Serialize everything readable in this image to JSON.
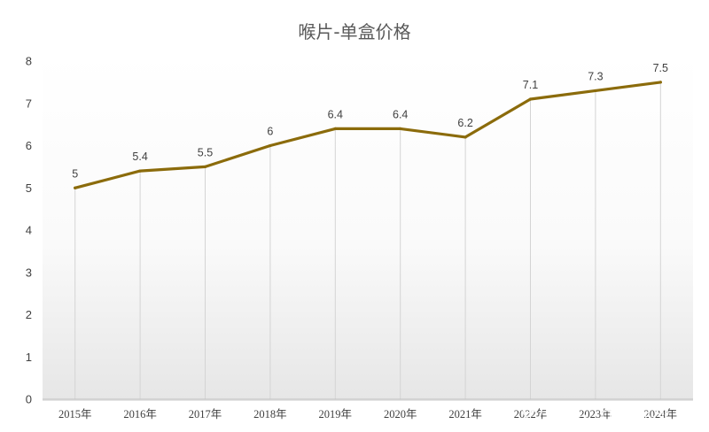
{
  "chart_data": {
    "type": "line",
    "title": "喉片-单盒价格",
    "categories": [
      "2015年",
      "2016年",
      "2017年",
      "2018年",
      "2019年",
      "2020年",
      "2021年",
      "2022年",
      "2023年",
      "2024年"
    ],
    "values": [
      5,
      5.4,
      5.5,
      6,
      6.4,
      6.4,
      6.2,
      7.1,
      7.3,
      7.5
    ],
    "data_labels": [
      "5",
      "5.4",
      "5.5",
      "6",
      "6.4",
      "6.4",
      "6.2",
      "7.1",
      "7.3",
      "7.5"
    ],
    "yticks": [
      "0",
      "1",
      "2",
      "3",
      "4",
      "5",
      "6",
      "7",
      "8"
    ],
    "ylim": [
      0,
      8
    ],
    "grid": "vertical",
    "line_color": "#8B6B0B",
    "xlabel": "",
    "ylabel": ""
  },
  "watermark": {
    "text": "雪球：托塔点邓",
    "icon": "snowball-logo-icon"
  }
}
